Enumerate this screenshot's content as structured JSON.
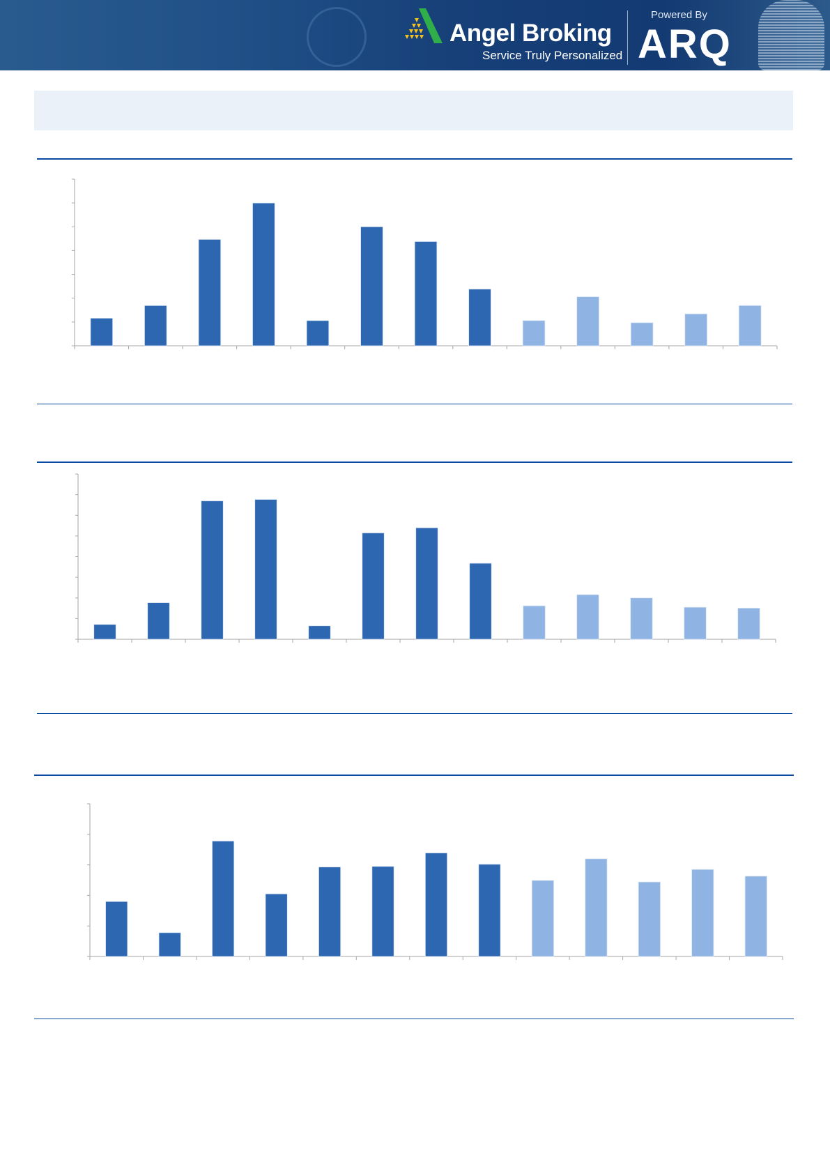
{
  "header": {
    "brand": "Angel Broking",
    "tagline": "Service Truly Personalized",
    "powered_by": "Powered By",
    "partner": "ARQ"
  },
  "colors": {
    "actual": "#2e67b1",
    "estimate": "#8fb4e3",
    "rule": "#0b4aa2",
    "axis": "#a6a6a6"
  },
  "chart_data": [
    {
      "type": "bar",
      "title": "",
      "ylim": [
        0,
        7
      ],
      "y_ticks": 7,
      "values": [
        1.16,
        1.69,
        4.47,
        6.0,
        1.06,
        5.0,
        4.38,
        2.38,
        1.06,
        2.06,
        0.97,
        1.34,
        1.69
      ],
      "shade": [
        "dark",
        "dark",
        "dark",
        "dark",
        "dark",
        "dark",
        "dark",
        "dark",
        "light",
        "light",
        "light",
        "light",
        "light"
      ]
    },
    {
      "type": "bar",
      "title": "",
      "ylim": [
        0,
        8
      ],
      "y_ticks": 8,
      "values": [
        0.72,
        1.77,
        6.7,
        6.77,
        0.65,
        5.15,
        5.4,
        3.68,
        1.62,
        2.16,
        2.0,
        1.55,
        1.51
      ],
      "shade": [
        "dark",
        "dark",
        "dark",
        "dark",
        "dark",
        "dark",
        "dark",
        "dark",
        "light",
        "light",
        "light",
        "light",
        "light"
      ]
    },
    {
      "type": "bar",
      "title": "",
      "ylim": [
        0,
        5
      ],
      "y_ticks": 5,
      "values": [
        1.8,
        0.78,
        3.78,
        2.05,
        2.93,
        2.95,
        3.39,
        3.02,
        2.49,
        3.2,
        2.44,
        2.85,
        2.63
      ],
      "shade": [
        "dark",
        "dark",
        "dark",
        "dark",
        "dark",
        "dark",
        "dark",
        "dark",
        "light",
        "light",
        "light",
        "light",
        "light"
      ]
    }
  ]
}
